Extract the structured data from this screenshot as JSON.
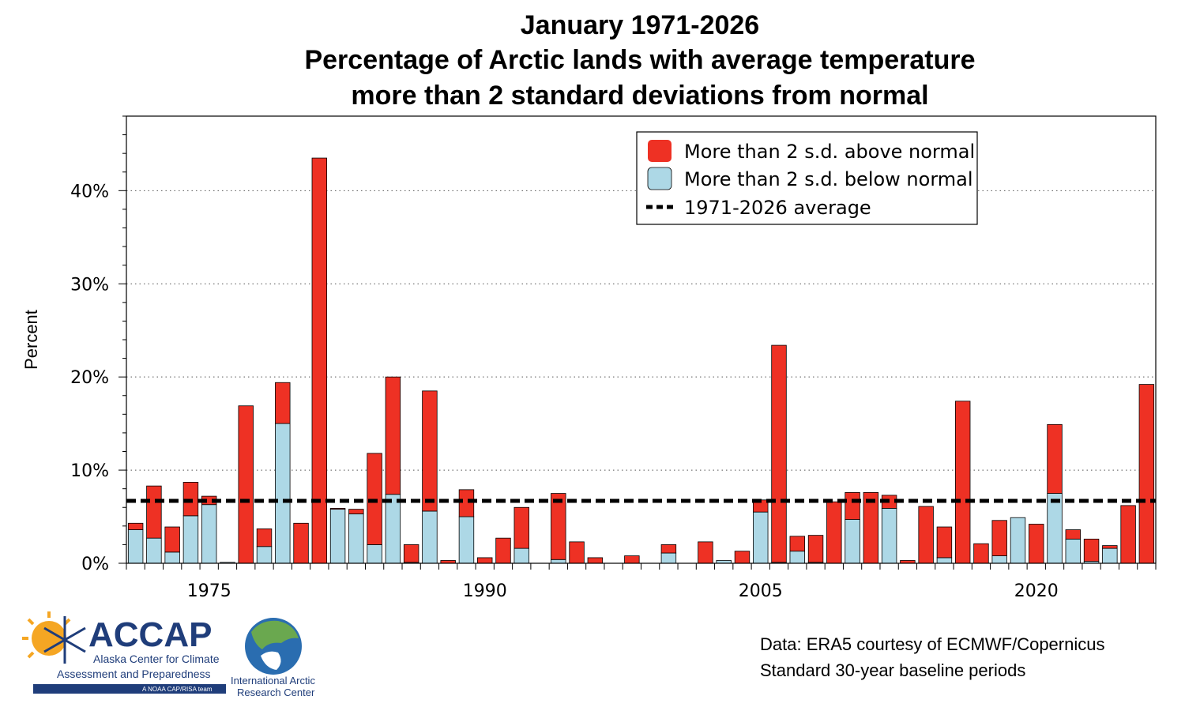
{
  "chart_data": {
    "type": "bar",
    "stacked": true,
    "title_lines": [
      "January 1971-2026",
      "Percentage of Arctic lands with average temperature",
      "more than 2 standard deviations from normal"
    ],
    "xlabel": "",
    "ylabel": "Percent",
    "ylim": [
      0,
      48
    ],
    "yticks": [
      0,
      10,
      20,
      30,
      40
    ],
    "ytick_labels": [
      "0%",
      "10%",
      "20%",
      "30%",
      "40%"
    ],
    "xtick_years": [
      1975,
      1990,
      2005,
      2020
    ],
    "xtick_labels": [
      "1975",
      "1990",
      "2005",
      "2020"
    ],
    "grid": "horizontal dotted",
    "legend_position": "top-right",
    "years": [
      1971,
      1972,
      1973,
      1974,
      1975,
      1976,
      1977,
      1978,
      1979,
      1980,
      1981,
      1982,
      1983,
      1984,
      1985,
      1986,
      1987,
      1988,
      1989,
      1990,
      1991,
      1992,
      1993,
      1994,
      1995,
      1996,
      1997,
      1998,
      1999,
      2000,
      2001,
      2002,
      2003,
      2004,
      2005,
      2006,
      2007,
      2008,
      2009,
      2010,
      2011,
      2012,
      2013,
      2014,
      2015,
      2016,
      2017,
      2018,
      2019,
      2020,
      2021,
      2022,
      2023,
      2024,
      2025,
      2026
    ],
    "series": [
      {
        "name": "More than 2 s.d. below normal",
        "color": "#add8e6",
        "values": [
          3.6,
          2.7,
          1.2,
          5.1,
          6.3,
          0.1,
          0,
          1.8,
          15.0,
          0,
          0,
          5.8,
          5.3,
          2.0,
          7.4,
          0.1,
          5.6,
          0,
          5.0,
          0,
          0,
          1.6,
          0,
          0.4,
          0,
          0,
          0,
          0,
          0,
          1.1,
          0,
          0,
          0.3,
          0,
          5.5,
          0.1,
          1.3,
          0.1,
          0,
          4.7,
          0,
          5.9,
          0,
          0,
          0.6,
          0,
          0,
          0.8,
          4.9,
          0,
          7.5,
          2.6,
          0.2,
          1.6,
          0,
          0
        ]
      },
      {
        "name": "More than 2 s.d. above normal",
        "color": "#ee3124",
        "values": [
          0.7,
          5.6,
          2.7,
          3.6,
          0.9,
          0,
          16.9,
          1.9,
          4.4,
          4.3,
          43.5,
          0.1,
          0.5,
          9.8,
          12.6,
          1.9,
          12.9,
          0.3,
          2.9,
          0.6,
          2.7,
          4.4,
          0,
          7.1,
          2.3,
          0.6,
          0,
          0.8,
          0,
          0.9,
          0,
          2.3,
          0,
          1.3,
          1.3,
          23.3,
          1.6,
          2.9,
          6.6,
          2.9,
          7.6,
          1.4,
          0.3,
          6.1,
          3.3,
          17.4,
          2.1,
          3.8,
          0,
          4.2,
          7.4,
          1.0,
          2.4,
          0.3,
          6.2,
          19.2
        ]
      }
    ],
    "average_line": {
      "name": "1971-2026 average",
      "value": 6.7,
      "color": "#000000"
    }
  },
  "legend": {
    "above_label": "More than 2 s.d. above normal",
    "below_label": "More than 2 s.d. below normal",
    "average_label": "1971-2026 average"
  },
  "credits": {
    "line1": "Data: ERA5 courtesy of ECMWF/Copernicus",
    "line2": "Standard 30-year baseline periods"
  },
  "logos": {
    "accap_name": "ACCAP",
    "accap_line1": "Alaska Center for Climate",
    "accap_line2": "Assessment and Preparedness",
    "accap_tagline": "A NOAA CAP/RISA team",
    "iarc_line1": "International Arctic",
    "iarc_line2": "Research Center"
  },
  "colors": {
    "above": "#ee3124",
    "below": "#add8e6",
    "accap_blue": "#1f3d7a",
    "accap_orange": "#f5a623"
  }
}
